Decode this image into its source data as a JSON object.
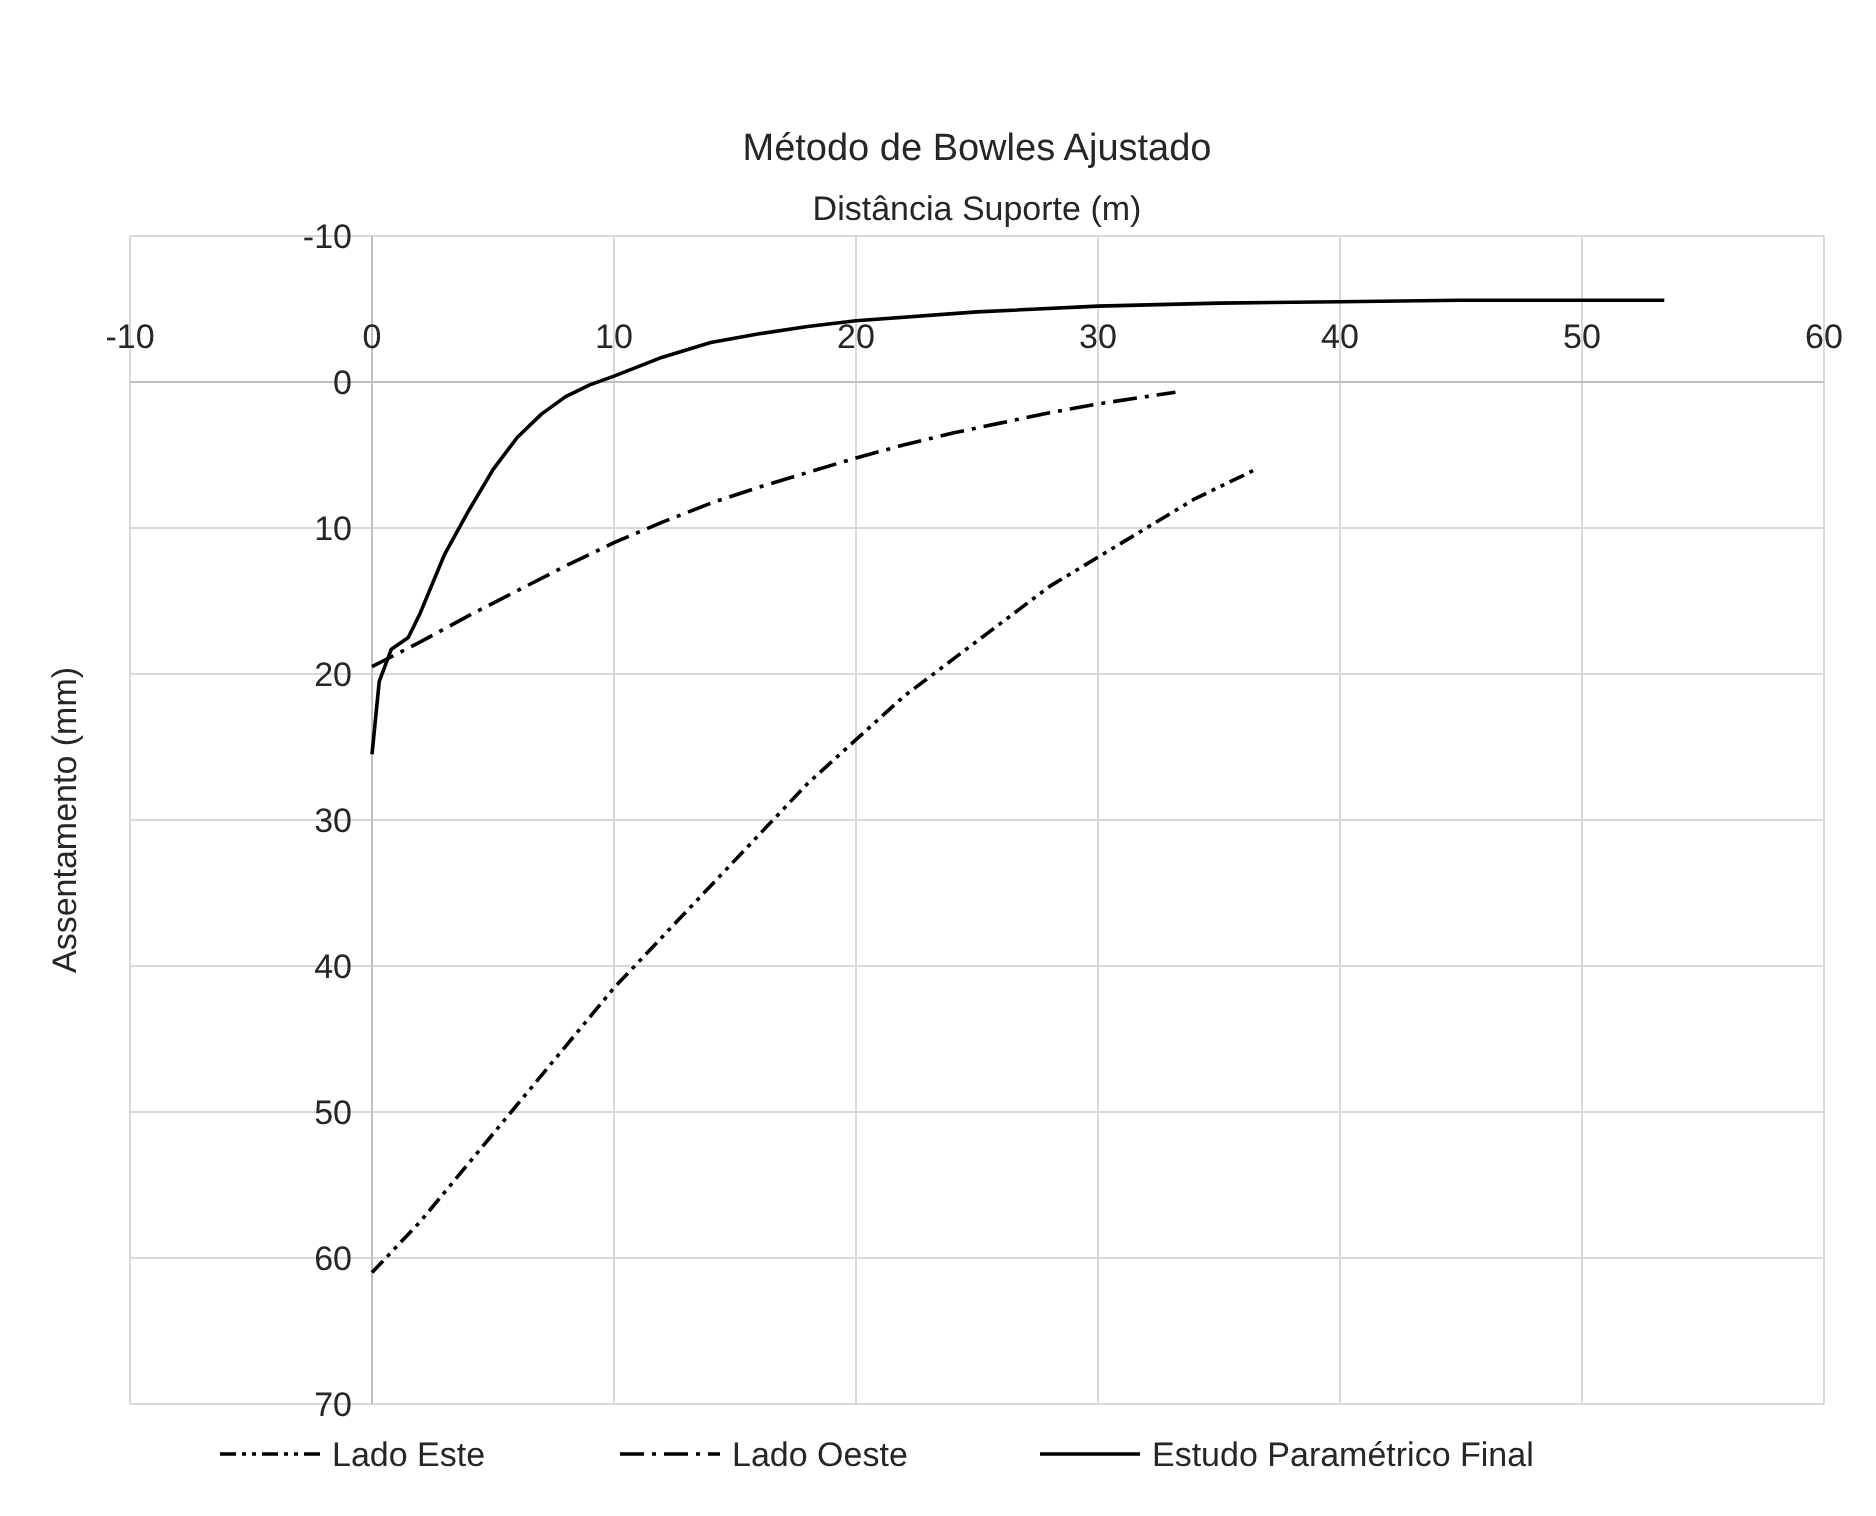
{
  "chart_data": {
    "type": "line",
    "title": "Método de Bowles Ajustado",
    "xlabel": "Distância Suporte (m)",
    "ylabel": "Assentamento (mm)",
    "xlim": [
      -10,
      60
    ],
    "xticks": [
      -10,
      0,
      10,
      20,
      30,
      40,
      50,
      60
    ],
    "ylim": [
      70,
      -10
    ],
    "yticks": [
      -10,
      0,
      10,
      20,
      30,
      40,
      50,
      60,
      70
    ],
    "grid": true,
    "legend": "bottom",
    "marker": "none",
    "series": [
      {
        "name": "Lado Este",
        "color": "#000000",
        "line_style": "dotted",
        "x": [
          0,
          2,
          4,
          6,
          8,
          10,
          12,
          14,
          16,
          18,
          20,
          22,
          24,
          26,
          28,
          30,
          32,
          34,
          36.5
        ],
        "values": [
          61,
          57.5,
          53.5,
          49.5,
          45.5,
          41.5,
          38,
          34.5,
          31,
          27.5,
          24.5,
          21.5,
          19,
          16.5,
          14,
          12,
          10,
          8,
          6
        ]
      },
      {
        "name": "Lado Oeste",
        "color": "#000000",
        "line_style": "dashed",
        "x": [
          0,
          2,
          4,
          6,
          8,
          10,
          12,
          14,
          16,
          18,
          20,
          22,
          24,
          26,
          28,
          30,
          32,
          33.2
        ],
        "values": [
          19.5,
          17.8,
          16,
          14.3,
          12.6,
          11,
          9.6,
          8.3,
          7.2,
          6.2,
          5.2,
          4.3,
          3.5,
          2.8,
          2.1,
          1.5,
          1,
          0.7
        ]
      },
      {
        "name": "Estudo Paramétrico Final",
        "color": "#000000",
        "line_style": "solid",
        "x": [
          0,
          0.3,
          0.8,
          1.5,
          2,
          3,
          4,
          5,
          6,
          7,
          8,
          9,
          10,
          12,
          14,
          16,
          18,
          20,
          25,
          30,
          35,
          40,
          45,
          53.4
        ],
        "values": [
          25.5,
          20.5,
          18.3,
          17.5,
          15.8,
          11.8,
          8.8,
          6,
          3.8,
          2.2,
          1,
          0.2,
          -0.4,
          -1.7,
          -2.7,
          -3.3,
          -3.8,
          -4.2,
          -4.8,
          -5.2,
          -5.4,
          -5.5,
          -5.6,
          -5.6
        ]
      }
    ]
  }
}
